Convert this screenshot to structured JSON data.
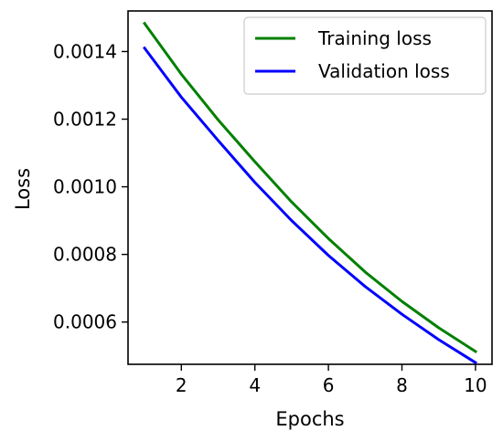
{
  "chart_data": {
    "type": "line",
    "title": "",
    "xlabel": "Epochs",
    "ylabel": "Loss",
    "xlim": [
      0.55,
      10.45
    ],
    "ylim": [
      0.000475,
      0.00152
    ],
    "xticks": [
      2,
      4,
      6,
      8,
      10
    ],
    "xtick_labels": [
      "2",
      "4",
      "6",
      "8",
      "10"
    ],
    "yticks": [
      0.0006,
      0.0008,
      0.001,
      0.0012,
      0.0014
    ],
    "ytick_labels": [
      "0.0006",
      "0.0008",
      "0.0010",
      "0.0012",
      "0.0014"
    ],
    "grid": false,
    "legend_position": "top-right",
    "x": [
      1,
      2,
      3,
      4,
      5,
      6,
      7,
      8,
      9,
      10
    ],
    "series": [
      {
        "name": "Training loss",
        "color": "#008000",
        "values": [
          0.001483,
          0.001333,
          0.001198,
          0.001074,
          0.000955,
          0.000847,
          0.000748,
          0.000661,
          0.000583,
          0.000513
        ]
      },
      {
        "name": "Validation loss",
        "color": "#0000ff",
        "values": [
          0.00141,
          0.001265,
          0.001137,
          0.001013,
          0.0009,
          0.000797,
          0.000705,
          0.000623,
          0.000548,
          0.00048
        ]
      }
    ]
  }
}
